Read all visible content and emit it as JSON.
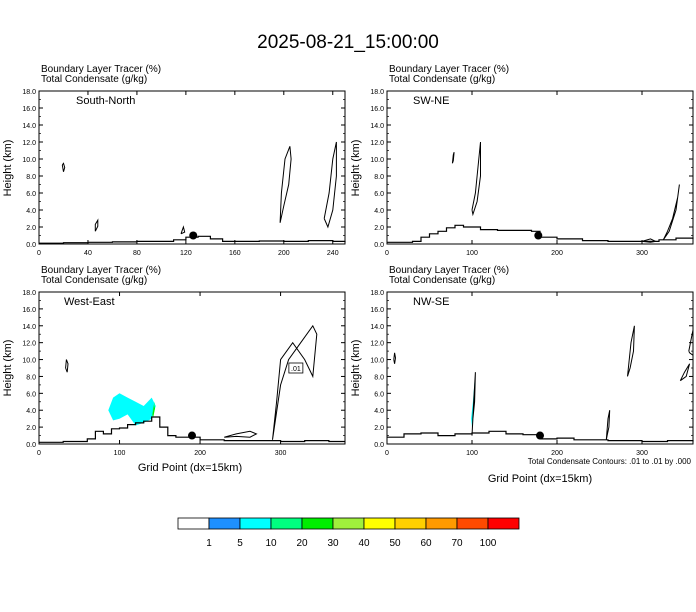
{
  "title": "2025-08-21_15:00:00",
  "panel_labels": {
    "field_line1": "Boundary Layer Tracer   (%)",
    "field_line2": "Total Condensate   (g/kg)"
  },
  "ylabel": "Height (km)",
  "xlabel": "Grid Point (dx=15km)",
  "contour_note": "Total Condensate Contours: .01 to .01 by .000",
  "colorbar": {
    "labels": [
      "1",
      "5",
      "10",
      "20",
      "30",
      "40",
      "50",
      "60",
      "70",
      "100"
    ],
    "colors": [
      "#ffffff",
      "#1e90ff",
      "#00ffff",
      "#00ff80",
      "#00ee00",
      "#a0f03c",
      "#ffff00",
      "#ffd000",
      "#ff9a00",
      "#ff4a00",
      "#ff0000"
    ]
  },
  "chart_data": [
    {
      "type": "contour",
      "name": "South-North",
      "xlim": [
        0,
        250
      ],
      "ylim": [
        0,
        18
      ],
      "xticks": [
        0,
        40,
        80,
        120,
        160,
        200,
        240
      ],
      "yticks": [
        0,
        2,
        4,
        6,
        8,
        10,
        12,
        14,
        16,
        18
      ],
      "marker": {
        "x": 126,
        "y": 1.0
      },
      "contour_labels": [],
      "terrain": [
        [
          0,
          0.1
        ],
        [
          20,
          0.15
        ],
        [
          40,
          0.2
        ],
        [
          60,
          0.25
        ],
        [
          80,
          0.3
        ],
        [
          100,
          0.3
        ],
        [
          110,
          0.5
        ],
        [
          120,
          0.8
        ],
        [
          130,
          0.9
        ],
        [
          140,
          0.6
        ],
        [
          150,
          0.3
        ],
        [
          180,
          0.35
        ],
        [
          200,
          0.3
        ],
        [
          220,
          0.4
        ],
        [
          240,
          0.3
        ],
        [
          250,
          0.35
        ]
      ],
      "condensate_contours": [
        {
          "x": [
            19,
            20,
            21,
            20,
            19
          ],
          "y": [
            9.3,
            8.5,
            9.0,
            9.5,
            9.3
          ]
        },
        {
          "x": [
            46,
            48,
            48,
            46,
            46
          ],
          "y": [
            1.5,
            2.1,
            2.8,
            2.3,
            1.5
          ]
        },
        {
          "x": [
            116,
            119,
            118,
            116
          ],
          "y": [
            1.2,
            1.4,
            2.0,
            1.2
          ]
        },
        {
          "x": [
            197,
            200,
            204,
            206,
            205,
            201,
            198,
            197
          ],
          "y": [
            2.5,
            4.5,
            7.0,
            10.0,
            11.5,
            10.0,
            6.0,
            2.5
          ]
        },
        {
          "x": [
            233,
            237,
            240,
            243,
            243,
            240,
            236,
            233
          ],
          "y": [
            3.0,
            6.0,
            10.0,
            12.0,
            8.0,
            4.0,
            2.0,
            3.0
          ]
        }
      ],
      "tracer_fill": []
    },
    {
      "type": "contour",
      "name": "SW-NE",
      "xlim": [
        0,
        360
      ],
      "ylim": [
        0,
        18
      ],
      "xticks": [
        0,
        100,
        200,
        300
      ],
      "yticks": [
        0,
        2,
        4,
        6,
        8,
        10,
        12,
        14,
        16,
        18
      ],
      "marker": {
        "x": 178,
        "y": 1.0
      },
      "contour_labels": [],
      "terrain": [
        [
          0,
          0.2
        ],
        [
          30,
          0.3
        ],
        [
          40,
          0.8
        ],
        [
          50,
          1.2
        ],
        [
          60,
          1.5
        ],
        [
          70,
          1.9
        ],
        [
          80,
          2.2
        ],
        [
          90,
          2.0
        ],
        [
          110,
          1.7
        ],
        [
          130,
          1.6
        ],
        [
          150,
          1.6
        ],
        [
          170,
          1.5
        ],
        [
          180,
          0.8
        ],
        [
          200,
          0.6
        ],
        [
          230,
          0.4
        ],
        [
          260,
          0.3
        ],
        [
          290,
          0.3
        ],
        [
          320,
          0.5
        ],
        [
          340,
          0.7
        ],
        [
          360,
          0.6
        ]
      ],
      "condensate_contours": [
        {
          "x": [
            77,
            78,
            79,
            78,
            77
          ],
          "y": [
            9.5,
            10.5,
            10.8,
            9.8,
            9.5
          ]
        },
        {
          "x": [
            100,
            104,
            108,
            110,
            110,
            106,
            101,
            100
          ],
          "y": [
            4.0,
            6.0,
            10.0,
            12.0,
            8.0,
            5.0,
            3.5,
            4.0
          ]
        },
        {
          "x": [
            325,
            330,
            336,
            342,
            344,
            340,
            332,
            325
          ],
          "y": [
            0.5,
            1.5,
            3.0,
            5.5,
            7.0,
            4.0,
            1.5,
            0.5
          ]
        },
        {
          "x": [
            300,
            310,
            316,
            310,
            300
          ],
          "y": [
            0.3,
            0.6,
            0.3,
            0.2,
            0.3
          ]
        }
      ],
      "tracer_fill": []
    },
    {
      "type": "contour",
      "name": "West-East",
      "xlim": [
        0,
        380
      ],
      "ylim": [
        0,
        18
      ],
      "xticks": [
        0,
        100,
        200,
        300
      ],
      "yticks": [
        0,
        2,
        4,
        6,
        8,
        10,
        12,
        14,
        16,
        18
      ],
      "marker": {
        "x": 190,
        "y": 1.0
      },
      "contour_labels": [
        {
          "x": 319,
          "y": 9.0,
          "text": ".01"
        }
      ],
      "terrain": [
        [
          0,
          0.2
        ],
        [
          30,
          0.3
        ],
        [
          60,
          0.6
        ],
        [
          70,
          1.5
        ],
        [
          80,
          1.2
        ],
        [
          90,
          1.8
        ],
        [
          100,
          1.9
        ],
        [
          110,
          2.3
        ],
        [
          120,
          2.5
        ],
        [
          130,
          2.7
        ],
        [
          140,
          3.2
        ],
        [
          150,
          2.0
        ],
        [
          160,
          1.0
        ],
        [
          170,
          0.8
        ],
        [
          200,
          0.5
        ],
        [
          230,
          0.4
        ],
        [
          270,
          0.4
        ],
        [
          300,
          0.3
        ],
        [
          330,
          0.4
        ],
        [
          360,
          0.3
        ],
        [
          380,
          0.3
        ]
      ],
      "condensate_contours": [
        {
          "x": [
            33,
            34,
            36,
            35,
            33
          ],
          "y": [
            9.0,
            10.0,
            9.5,
            8.5,
            9.0
          ]
        },
        {
          "x": [
            230,
            245,
            262,
            270,
            262,
            245,
            230
          ],
          "y": [
            0.8,
            0.9,
            0.8,
            1.2,
            1.5,
            1.2,
            0.8
          ]
        },
        {
          "x": [
            290,
            295,
            300,
            315,
            330,
            340,
            345,
            340,
            325,
            310,
            300,
            290
          ],
          "y": [
            0.5,
            5.0,
            10.0,
            12.0,
            10.0,
            8.0,
            13.0,
            14.0,
            12.0,
            10.0,
            7.0,
            0.5
          ]
        }
      ],
      "tracer_fill": [
        {
          "level": 5,
          "x": [
            86,
            92,
            100,
            110,
            120,
            130,
            140,
            145,
            140,
            130,
            120,
            110,
            100,
            92,
            86
          ],
          "y": [
            4.0,
            5.5,
            6.0,
            5.5,
            5.0,
            4.5,
            5.5,
            4.5,
            3.0,
            2.5,
            2.2,
            3.5,
            3.0,
            2.8,
            4.0
          ]
        },
        {
          "level": 10,
          "x": [
            140,
            142,
            144,
            142,
            140
          ],
          "y": [
            3.0,
            4.5,
            5.0,
            3.5,
            3.0
          ]
        },
        {
          "level": 20,
          "x": [
            141,
            143,
            144,
            142,
            141
          ],
          "y": [
            3.5,
            4.6,
            4.2,
            3.2,
            3.5
          ]
        }
      ]
    },
    {
      "type": "contour",
      "name": "NW-SE",
      "xlim": [
        0,
        360
      ],
      "ylim": [
        0,
        18
      ],
      "xticks": [
        0,
        100,
        200,
        300
      ],
      "yticks": [
        0,
        2,
        4,
        6,
        8,
        10,
        12,
        14,
        16,
        18
      ],
      "marker": {
        "x": 180,
        "y": 1.0
      },
      "contour_labels": [],
      "terrain": [
        [
          0,
          0.8
        ],
        [
          20,
          1.2
        ],
        [
          40,
          1.3
        ],
        [
          60,
          1.0
        ],
        [
          80,
          1.2
        ],
        [
          100,
          1.3
        ],
        [
          120,
          1.5
        ],
        [
          140,
          1.2
        ],
        [
          160,
          1.1
        ],
        [
          180,
          0.6
        ],
        [
          200,
          0.7
        ],
        [
          220,
          0.5
        ],
        [
          260,
          0.4
        ],
        [
          300,
          0.3
        ],
        [
          330,
          0.4
        ],
        [
          360,
          0.3
        ]
      ],
      "condensate_contours": [
        {
          "x": [
            8,
            9,
            10,
            9,
            8
          ],
          "y": [
            10.0,
            10.8,
            10.2,
            9.5,
            10.0
          ]
        },
        {
          "x": [
            100,
            102,
            104,
            103,
            101,
            100
          ],
          "y": [
            1.0,
            5.0,
            8.5,
            5.0,
            3.0,
            1.0
          ]
        },
        {
          "x": [
            283,
            287,
            291,
            290,
            286,
            283
          ],
          "y": [
            8.0,
            12.0,
            14.0,
            11.0,
            9.0,
            8.0
          ]
        },
        {
          "x": [
            258,
            260,
            262,
            261,
            259,
            258
          ],
          "y": [
            0.5,
            3.0,
            4.0,
            2.0,
            1.0,
            0.5
          ]
        },
        {
          "x": [
            345,
            350,
            356,
            352,
            345
          ],
          "y": [
            7.5,
            8.5,
            9.5,
            8.0,
            7.5
          ]
        },
        {
          "x": [
            355,
            358,
            360,
            360,
            356,
            355
          ],
          "y": [
            11.0,
            12.5,
            13.5,
            10.5,
            10.8,
            11.0
          ]
        }
      ],
      "tracer_fill": [
        {
          "level": 5,
          "x": [
            99,
            101,
            103,
            102,
            100,
            99
          ],
          "y": [
            3.0,
            5.0,
            7.5,
            4.0,
            2.0,
            3.0
          ]
        }
      ]
    }
  ]
}
